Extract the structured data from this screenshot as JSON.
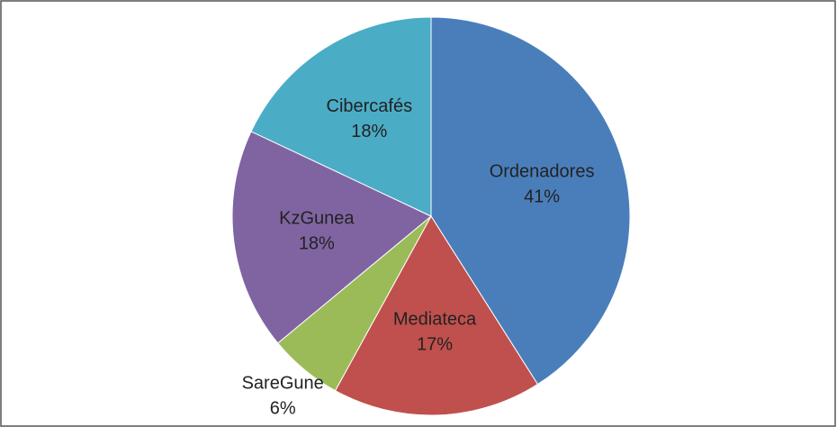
{
  "chart_data": {
    "type": "pie",
    "categories": [
      "Ordenadores",
      "Mediateca",
      "SareGune",
      "KzGunea",
      "Cibercafés"
    ],
    "values": [
      41,
      17,
      6,
      18,
      18
    ],
    "value_labels": [
      "41%",
      "17%",
      "6%",
      "18%",
      "18%"
    ],
    "colors": [
      "#4a7ebb",
      "#c0504d",
      "#9bbb59",
      "#8064a2",
      "#4bacc6"
    ]
  }
}
